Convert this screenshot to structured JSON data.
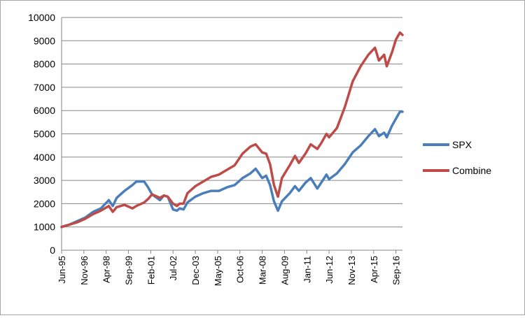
{
  "chart_data": {
    "type": "line",
    "title": "",
    "xlabel": "",
    "ylabel": "",
    "ylim": [
      0,
      10000
    ],
    "yticks": [
      0,
      1000,
      2000,
      3000,
      4000,
      5000,
      6000,
      7000,
      8000,
      9000,
      10000
    ],
    "xticks": [
      "Jun-95",
      "Nov-96",
      "Apr-98",
      "Sep-99",
      "Feb-01",
      "Jul-02",
      "Dec-03",
      "May-05",
      "Oct-06",
      "Mar-08",
      "Aug-09",
      "Jan-11",
      "Jun-12",
      "Nov-13",
      "Apr-15",
      "Sep-16"
    ],
    "grid": "horizontal",
    "legend_position": "right",
    "series": [
      {
        "name": "SPX",
        "color": "#4a7ebb",
        "points": [
          [
            "1995-06",
            1000
          ],
          [
            "1995-12",
            1100
          ],
          [
            "1996-06",
            1250
          ],
          [
            "1996-12",
            1400
          ],
          [
            "1997-06",
            1650
          ],
          [
            "1997-12",
            1800
          ],
          [
            "1998-06",
            2150
          ],
          [
            "1998-09",
            1900
          ],
          [
            "1998-12",
            2250
          ],
          [
            "1999-06",
            2550
          ],
          [
            "1999-12",
            2800
          ],
          [
            "2000-03",
            2950
          ],
          [
            "2000-09",
            2950
          ],
          [
            "2000-12",
            2700
          ],
          [
            "2001-03",
            2400
          ],
          [
            "2001-09",
            2150
          ],
          [
            "2001-12",
            2350
          ],
          [
            "2002-03",
            2300
          ],
          [
            "2002-07",
            1750
          ],
          [
            "2002-10",
            1700
          ],
          [
            "2002-12",
            1800
          ],
          [
            "2003-03",
            1750
          ],
          [
            "2003-06",
            2050
          ],
          [
            "2003-12",
            2300
          ],
          [
            "2004-06",
            2450
          ],
          [
            "2004-12",
            2550
          ],
          [
            "2005-06",
            2550
          ],
          [
            "2005-12",
            2700
          ],
          [
            "2006-06",
            2800
          ],
          [
            "2006-12",
            3100
          ],
          [
            "2007-06",
            3300
          ],
          [
            "2007-10",
            3500
          ],
          [
            "2008-03",
            3100
          ],
          [
            "2008-06",
            3200
          ],
          [
            "2008-09",
            2800
          ],
          [
            "2008-12",
            2100
          ],
          [
            "2009-03",
            1700
          ],
          [
            "2009-06",
            2100
          ],
          [
            "2009-12",
            2450
          ],
          [
            "2010-04",
            2750
          ],
          [
            "2010-07",
            2550
          ],
          [
            "2010-12",
            2900
          ],
          [
            "2011-04",
            3100
          ],
          [
            "2011-09",
            2650
          ],
          [
            "2011-12",
            2900
          ],
          [
            "2012-04",
            3250
          ],
          [
            "2012-06",
            3050
          ],
          [
            "2012-12",
            3300
          ],
          [
            "2013-06",
            3700
          ],
          [
            "2013-12",
            4200
          ],
          [
            "2014-06",
            4500
          ],
          [
            "2014-12",
            4900
          ],
          [
            "2015-05",
            5200
          ],
          [
            "2015-08",
            4900
          ],
          [
            "2015-12",
            5050
          ],
          [
            "2016-02",
            4850
          ],
          [
            "2016-06",
            5350
          ],
          [
            "2016-09",
            5650
          ],
          [
            "2016-12",
            5950
          ],
          [
            "2017-02",
            5950
          ]
        ]
      },
      {
        "name": "Combine",
        "color": "#be4b48",
        "points": [
          [
            "1995-06",
            1000
          ],
          [
            "1995-12",
            1100
          ],
          [
            "1996-06",
            1200
          ],
          [
            "1996-12",
            1350
          ],
          [
            "1997-06",
            1550
          ],
          [
            "1997-12",
            1700
          ],
          [
            "1998-06",
            1900
          ],
          [
            "1998-09",
            1650
          ],
          [
            "1998-12",
            1850
          ],
          [
            "1999-06",
            1950
          ],
          [
            "1999-12",
            1800
          ],
          [
            "2000-03",
            1900
          ],
          [
            "2000-09",
            2050
          ],
          [
            "2000-12",
            2200
          ],
          [
            "2001-03",
            2400
          ],
          [
            "2001-09",
            2250
          ],
          [
            "2001-12",
            2350
          ],
          [
            "2002-03",
            2300
          ],
          [
            "2002-07",
            2000
          ],
          [
            "2002-10",
            1900
          ],
          [
            "2002-12",
            2000
          ],
          [
            "2003-03",
            2000
          ],
          [
            "2003-06",
            2450
          ],
          [
            "2003-12",
            2750
          ],
          [
            "2004-06",
            2950
          ],
          [
            "2004-12",
            3150
          ],
          [
            "2005-06",
            3250
          ],
          [
            "2005-12",
            3450
          ],
          [
            "2006-06",
            3650
          ],
          [
            "2006-12",
            4150
          ],
          [
            "2007-06",
            4450
          ],
          [
            "2007-10",
            4550
          ],
          [
            "2008-03",
            4200
          ],
          [
            "2008-06",
            4150
          ],
          [
            "2008-09",
            3700
          ],
          [
            "2008-12",
            2800
          ],
          [
            "2009-03",
            2300
          ],
          [
            "2009-06",
            3100
          ],
          [
            "2009-12",
            3650
          ],
          [
            "2010-04",
            4050
          ],
          [
            "2010-07",
            3750
          ],
          [
            "2010-12",
            4150
          ],
          [
            "2011-04",
            4550
          ],
          [
            "2011-09",
            4350
          ],
          [
            "2011-12",
            4600
          ],
          [
            "2012-04",
            5000
          ],
          [
            "2012-06",
            4850
          ],
          [
            "2012-12",
            5250
          ],
          [
            "2013-06",
            6150
          ],
          [
            "2013-12",
            7250
          ],
          [
            "2014-06",
            7900
          ],
          [
            "2014-12",
            8400
          ],
          [
            "2015-05",
            8700
          ],
          [
            "2015-08",
            8150
          ],
          [
            "2015-12",
            8400
          ],
          [
            "2016-02",
            7900
          ],
          [
            "2016-06",
            8500
          ],
          [
            "2016-09",
            9050
          ],
          [
            "2016-12",
            9350
          ],
          [
            "2017-02",
            9250
          ]
        ]
      }
    ]
  }
}
